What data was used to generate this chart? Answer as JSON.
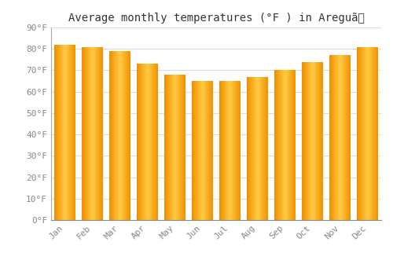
{
  "title": "Average monthly temperatures (°F ) in Areguã",
  "months": [
    "Jan",
    "Feb",
    "Mar",
    "Apr",
    "May",
    "Jun",
    "Jul",
    "Aug",
    "Sep",
    "Oct",
    "Nov",
    "Dec"
  ],
  "values": [
    82,
    81,
    79,
    73,
    68,
    65,
    65,
    67,
    70,
    74,
    77,
    81
  ],
  "bar_color_main": "#FFA500",
  "bar_color_light": "#FFD060",
  "bar_color_dark": "#E08000",
  "ylim": [
    0,
    90
  ],
  "yticks": [
    0,
    10,
    20,
    30,
    40,
    50,
    60,
    70,
    80,
    90
  ],
  "ytick_labels": [
    "0°F",
    "10°F",
    "20°F",
    "30°F",
    "40°F",
    "50°F",
    "60°F",
    "70°F",
    "80°F",
    "90°F"
  ],
  "background_color": "#FFFFFF",
  "grid_color": "#DDDDDD",
  "title_fontsize": 10,
  "tick_fontsize": 8,
  "bar_width": 0.75,
  "title_color": "#333333",
  "tick_color": "#888888",
  "left_spine_color": "#AAAAAA"
}
